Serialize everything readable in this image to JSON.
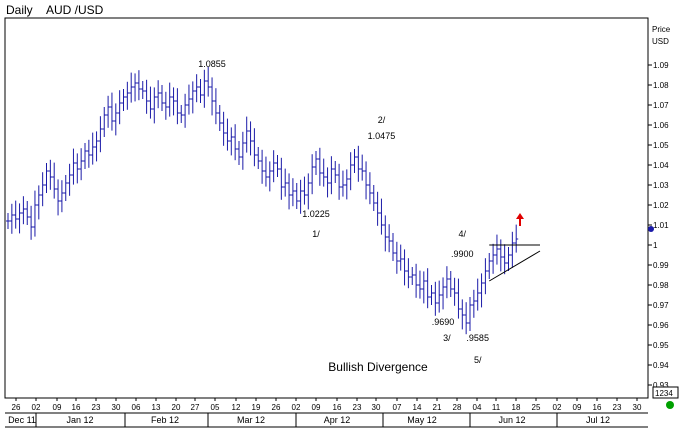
{
  "header": {
    "period": "Daily",
    "symbol": "AUD /USD"
  },
  "axis": {
    "price_label_1": "Price",
    "price_label_2": "USD",
    "last_price_box": "1234"
  },
  "annotations": {
    "bullish_divergence": "Bullish  Divergence"
  },
  "colors": {
    "bars": "#1a1aa8",
    "grid": "#000000",
    "arrow": "#e00000",
    "marker": "#1a1aa8",
    "last_dot": "#00a000"
  },
  "chart_data": {
    "type": "ohlc",
    "title": "AUD /USD",
    "timeframe": "Daily",
    "ylabel": "Price USD",
    "ylim": [
      0.925,
      1.1
    ],
    "y_ticks": [
      "1.09",
      "1.08",
      "1.07",
      "1.06",
      "1.05",
      "1.04",
      "1.03",
      "1.02",
      "1.01",
      "1",
      "0.99",
      "0.98",
      "0.97",
      "0.96",
      "0.95",
      "0.94",
      "0.93"
    ],
    "x_day_ticks": [
      "26",
      "02",
      "09",
      "16",
      "23",
      "30",
      "06",
      "13",
      "20",
      "27",
      "05",
      "12",
      "19",
      "26",
      "02",
      "09",
      "16",
      "23",
      "30",
      "07",
      "14",
      "21",
      "28",
      "04",
      "11",
      "18",
      "25",
      "02",
      "09",
      "16",
      "23",
      "30"
    ],
    "x_month_labels": [
      "Dec 11",
      "Jan 12",
      "Feb 12",
      "Mar 12",
      "Apr 12",
      "May 12",
      "Jun 12",
      "Jul 12"
    ],
    "closes": [
      1.012,
      1.015,
      1.013,
      1.016,
      1.018,
      1.014,
      1.009,
      1.02,
      1.025,
      1.03,
      1.037,
      1.034,
      1.028,
      1.022,
      1.026,
      1.031,
      1.035,
      1.041,
      1.038,
      1.042,
      1.047,
      1.045,
      1.049,
      1.052,
      1.058,
      1.065,
      1.069,
      1.062,
      1.066,
      1.071,
      1.074,
      1.076,
      1.079,
      1.081,
      1.078,
      1.077,
      1.072,
      1.068,
      1.074,
      1.076,
      1.071,
      1.069,
      1.074,
      1.072,
      1.066,
      1.065,
      1.07,
      1.073,
      1.077,
      1.079,
      1.075,
      1.082,
      1.079,
      1.072,
      1.066,
      1.061,
      1.056,
      1.052,
      1.054,
      1.048,
      1.044,
      1.051,
      1.057,
      1.052,
      1.045,
      1.042,
      1.037,
      1.034,
      1.037,
      1.041,
      1.038,
      1.029,
      1.031,
      1.025,
      1.027,
      1.022,
      1.027,
      1.025,
      1.031,
      1.039,
      1.043,
      1.036,
      1.034,
      1.031,
      1.038,
      1.035,
      1.029,
      1.03,
      1.033,
      1.04,
      1.044,
      1.038,
      1.037,
      1.03,
      1.026,
      1.021,
      1.016,
      1.01,
      1.004,
      1.002,
      0.996,
      0.992,
      0.993,
      0.987,
      0.984,
      0.985,
      0.98,
      0.978,
      0.982,
      0.974,
      0.976,
      0.971,
      0.975,
      0.979,
      0.983,
      0.978,
      0.976,
      0.968,
      0.965,
      0.961,
      0.97,
      0.972,
      0.976,
      0.981,
      0.987,
      0.992,
      0.995,
      0.998,
      0.994,
      0.991,
      0.995,
      1.001,
      1.003
    ],
    "labels": [
      {
        "text": "1.0855",
        "x_index": 53,
        "y": 1.089
      },
      {
        "text": "2/",
        "x_index": 97,
        "y": 1.061
      },
      {
        "text": "1.0475",
        "x_index": 97,
        "y": 1.053
      },
      {
        "text": "1.0225",
        "x_index": 80,
        "y": 1.014
      },
      {
        "text": "1/",
        "x_index": 80,
        "y": 1.004
      },
      {
        "text": "4/",
        "x_index": 118,
        "y": 1.004
      },
      {
        "text": ".9900",
        "x_index": 118,
        "y": 0.994
      },
      {
        "text": ".9690",
        "x_index": 113,
        "y": 0.96
      },
      {
        "text": "3/",
        "x_index": 114,
        "y": 0.952
      },
      {
        "text": ".9585",
        "x_index": 122,
        "y": 0.952
      },
      {
        "text": "5/",
        "x_index": 122,
        "y": 0.941
      }
    ],
    "triangle": {
      "top_y": 1.0,
      "apex_y": 0.997,
      "low_y": 0.982
    },
    "arrow": "up",
    "grid": false
  }
}
